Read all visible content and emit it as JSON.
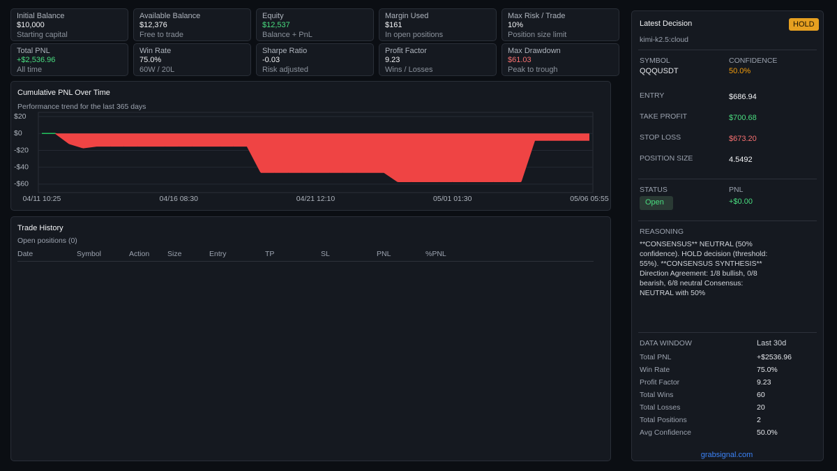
{
  "cards": [
    {
      "label": "Initial Balance",
      "value": "$10,000",
      "sub": "Starting capital",
      "color": "#f3f4f6"
    },
    {
      "label": "Available Balance",
      "value": "$12,376",
      "sub": "Free to trade",
      "color": "#f3f4f6"
    },
    {
      "label": "Equity",
      "value": "$12,537",
      "sub": "Balance + PnL",
      "color": "#4ade80"
    },
    {
      "label": "Margin Used",
      "value": "$161",
      "sub": "In open positions",
      "color": "#f3f4f6"
    },
    {
      "label": "Max Risk / Trade",
      "value": "10%",
      "sub": "Position size limit",
      "color": "#f3f4f6"
    },
    {
      "label": "Total PNL",
      "value": "+$2,536.96",
      "sub": "All time",
      "color": "#4ade80"
    },
    {
      "label": "Win Rate",
      "value": "75.0%",
      "sub": "60W / 20L",
      "color": "#f3f4f6"
    },
    {
      "label": "Sharpe Ratio",
      "value": "-0.03",
      "sub": "Risk adjusted",
      "color": "#f3f4f6"
    },
    {
      "label": "Profit Factor",
      "value": "9.23",
      "sub": "Wins / Losses",
      "color": "#f3f4f6"
    },
    {
      "label": "Max Drawdown",
      "value": "$61.03",
      "sub": "Peak to trough",
      "color": "#f87171"
    }
  ],
  "chart": {
    "type": "area",
    "title": "Cumulative PNL Over Time",
    "subtitle": "Performance trend for the last 365 days",
    "categories": [
      "04/11 10:25",
      null,
      null,
      null,
      null,
      null,
      null,
      null,
      null,
      null,
      "04/16 08:30",
      null,
      null,
      null,
      null,
      null,
      null,
      null,
      null,
      null,
      "04/21 12:10",
      null,
      null,
      null,
      null,
      null,
      null,
      null,
      null,
      null,
      "05/01 01:30",
      null,
      null,
      null,
      null,
      null,
      null,
      null,
      null,
      null,
      "05/06 05:55"
    ],
    "series": [
      {
        "color": "#ef4444",
        "positive_color": "#22c55e",
        "values": [
          0,
          0,
          -12,
          -17,
          -15,
          -15,
          -15,
          -15,
          -15,
          -15,
          -15,
          -15,
          -15,
          -15,
          -15,
          -15,
          -46,
          -46,
          -46,
          -46,
          -46,
          -46,
          -46,
          -46,
          -46,
          -46,
          -57,
          -57,
          -57,
          -57,
          -57,
          -57,
          -57,
          -57,
          -57,
          -57,
          -8,
          -8,
          -8,
          -8,
          -8
        ]
      }
    ],
    "ylim": [
      -70,
      25
    ],
    "yticks": [
      {
        "value": -60,
        "label": "-$60"
      },
      {
        "value": -40,
        "label": "-$40"
      },
      {
        "value": -20,
        "label": "-$20"
      },
      {
        "value": 0,
        "label": "$0"
      },
      {
        "value": 20,
        "label": "$20"
      }
    ],
    "grid": true
  },
  "history": {
    "title": "Trade History",
    "subtitle": "Open positions (0)",
    "columns": [
      "Date",
      "Symbol",
      "Action",
      "Size",
      "Entry",
      "TP",
      "SL",
      "PNL",
      "%PNL"
    ]
  },
  "decision": {
    "title": "Latest Decision",
    "badge": "HOLD",
    "model": "kimi-k2.5:cloud",
    "symbol_label": "SYMBOL",
    "symbol": "QQQUSDT",
    "confidence_label": "CONFIDENCE",
    "confidence": "50.0%",
    "fields": [
      {
        "label": "ENTRY",
        "value": "$686.94",
        "color": "#f3f4f6"
      },
      {
        "label": "TAKE PROFIT",
        "value": "$700.68",
        "color": "#4ade80"
      },
      {
        "label": "STOP LOSS",
        "value": "$673.20",
        "color": "#f87171"
      },
      {
        "label": "POSITION SIZE",
        "value": "4.5492",
        "color": "#f3f4f6"
      }
    ],
    "status_label": "STATUS",
    "status": "Open",
    "pnl_label": "PNL",
    "pnl": "+$0.00",
    "reasoning_label": "REASONING",
    "reasoning": "**CONSENSUS** NEUTRAL (50% confidence). HOLD decision (threshold: 55%). **CONSENSUS SYNTHESIS** Direction Agreement: 1/8 bullish, 0/8 bearish, 6/8 neutral Consensus: NEUTRAL with 50%",
    "window_label": "DATA WINDOW",
    "window": "Last 30d",
    "stats": [
      {
        "label": "Total PNL",
        "value": "+$2536.96"
      },
      {
        "label": "Win Rate",
        "value": "75.0%"
      },
      {
        "label": "Profit Factor",
        "value": "9.23"
      },
      {
        "label": "Total Wins",
        "value": "60"
      },
      {
        "label": "Total Losses",
        "value": "20"
      },
      {
        "label": "Total Positions",
        "value": "2"
      },
      {
        "label": "Avg Confidence",
        "value": "50.0%"
      }
    ],
    "footer": "grabsignal.com"
  }
}
